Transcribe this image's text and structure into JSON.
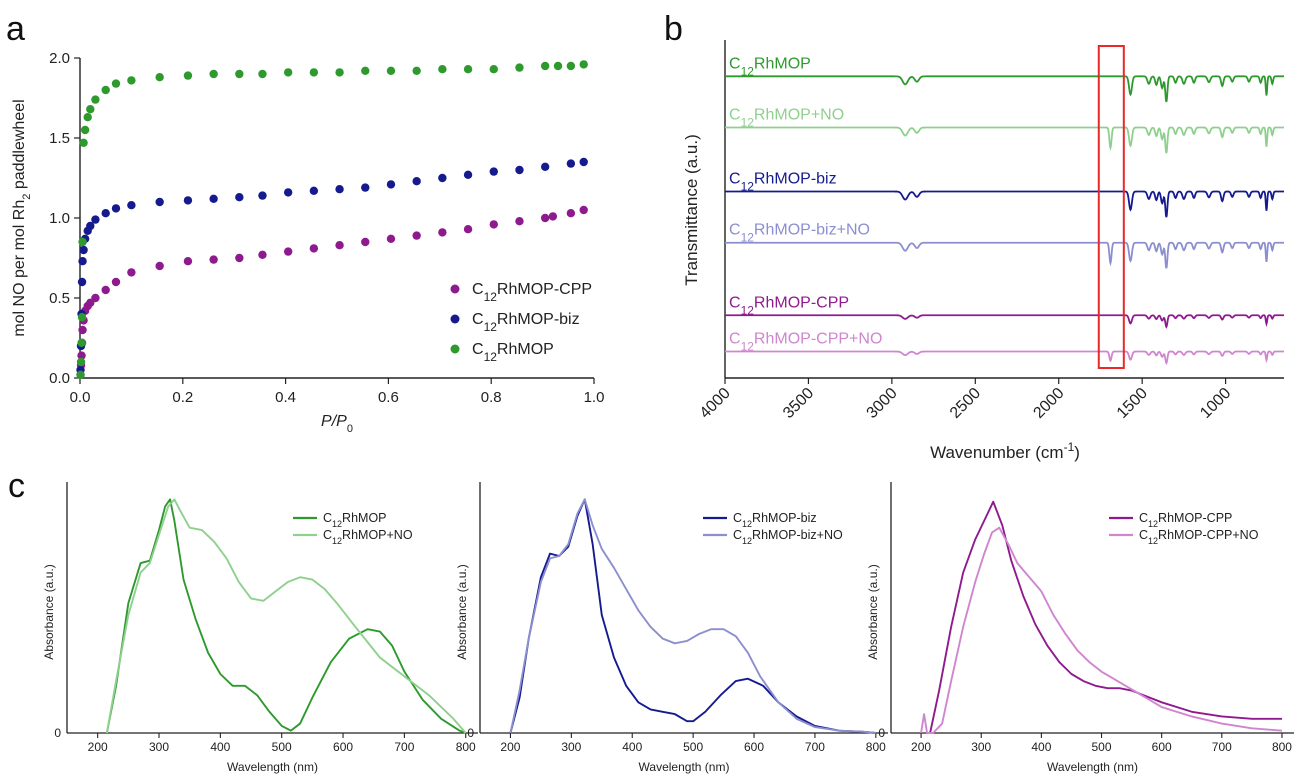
{
  "panel_labels": {
    "a": "a",
    "b": "b",
    "c": "c"
  },
  "colors": {
    "green": "#2e9a2e",
    "light_green": "#8fd08f",
    "navy": "#151b8f",
    "lavender": "#8c8fcf",
    "purple": "#8e1b8e",
    "orchid": "#cf86cf",
    "box": "#e8292a"
  },
  "chart_data": [
    {
      "id": "a",
      "type": "scatter",
      "xlabel": {
        "main": "P/P",
        "sub": "0"
      },
      "ylabel": {
        "pre": "mol NO per mol Rh",
        "sub": "2",
        "post": " paddlewheel"
      },
      "xlim": [
        0,
        1.0
      ],
      "ylim": [
        0,
        2.0
      ],
      "xticks": [
        "0.0",
        "0.2",
        "0.4",
        "0.6",
        "0.8",
        "1.0"
      ],
      "yticks": [
        "0.0",
        "0.5",
        "1.0",
        "1.5",
        "2.0"
      ],
      "legend_position": "bottom-right",
      "series": [
        {
          "pre": "C",
          "sub": "12",
          "post": "RhMOP-CPP",
          "color": "#8e1b8e",
          "x": [
            0.001,
            0.002,
            0.003,
            0.004,
            0.005,
            0.007,
            0.01,
            0.015,
            0.02,
            0.03,
            0.05,
            0.07,
            0.1,
            0.155,
            0.21,
            0.26,
            0.31,
            0.355,
            0.405,
            0.455,
            0.505,
            0.555,
            0.605,
            0.655,
            0.705,
            0.755,
            0.805,
            0.855,
            0.905,
            0.92,
            0.955,
            0.98
          ],
          "y": [
            0.02,
            0.08,
            0.14,
            0.22,
            0.3,
            0.36,
            0.42,
            0.45,
            0.47,
            0.5,
            0.55,
            0.6,
            0.66,
            0.7,
            0.73,
            0.74,
            0.75,
            0.77,
            0.79,
            0.81,
            0.83,
            0.85,
            0.87,
            0.89,
            0.91,
            0.93,
            0.96,
            0.98,
            1.0,
            1.01,
            1.03,
            1.05
          ]
        },
        {
          "pre": "C",
          "sub": "12",
          "post": "RhMOP-biz",
          "color": "#151b8f",
          "x": [
            0.001,
            0.002,
            0.003,
            0.004,
            0.005,
            0.007,
            0.01,
            0.015,
            0.02,
            0.03,
            0.05,
            0.07,
            0.1,
            0.155,
            0.21,
            0.26,
            0.31,
            0.355,
            0.405,
            0.455,
            0.505,
            0.555,
            0.605,
            0.655,
            0.705,
            0.755,
            0.805,
            0.855,
            0.905,
            0.955,
            0.98
          ],
          "y": [
            0.05,
            0.2,
            0.4,
            0.6,
            0.73,
            0.8,
            0.87,
            0.92,
            0.95,
            0.99,
            1.03,
            1.06,
            1.08,
            1.1,
            1.11,
            1.12,
            1.13,
            1.14,
            1.16,
            1.17,
            1.18,
            1.19,
            1.21,
            1.23,
            1.25,
            1.27,
            1.29,
            1.3,
            1.32,
            1.34,
            1.35
          ]
        },
        {
          "pre": "C",
          "sub": "12",
          "post": "RhMOP",
          "color": "#2e9a2e",
          "x": [
            0.001,
            0.002,
            0.003,
            0.004,
            0.005,
            0.007,
            0.01,
            0.015,
            0.02,
            0.03,
            0.05,
            0.07,
            0.1,
            0.155,
            0.21,
            0.26,
            0.31,
            0.355,
            0.405,
            0.455,
            0.505,
            0.555,
            0.605,
            0.655,
            0.705,
            0.755,
            0.805,
            0.855,
            0.905,
            0.93,
            0.955,
            0.98
          ],
          "y": [
            0.02,
            0.1,
            0.22,
            0.38,
            0.85,
            1.47,
            1.55,
            1.63,
            1.68,
            1.74,
            1.8,
            1.84,
            1.86,
            1.88,
            1.89,
            1.9,
            1.9,
            1.9,
            1.91,
            1.91,
            1.91,
            1.92,
            1.92,
            1.92,
            1.93,
            1.93,
            1.93,
            1.94,
            1.95,
            1.95,
            1.95,
            1.96
          ]
        }
      ]
    },
    {
      "id": "b",
      "type": "line",
      "xlabel": {
        "main": "Wavenumber (cm",
        "sup": "-1",
        "post": ")"
      },
      "ylabel": "Transmittance (a.u.)",
      "xlim": [
        4000,
        650
      ],
      "xticks": [
        4000,
        3500,
        3000,
        2500,
        2000,
        1500,
        1000
      ],
      "xtick_labels": [
        "4000",
        "3500",
        "3000",
        "2500",
        "2000",
        "1500",
        "1000"
      ],
      "highlight_box": [
        1760,
        1610
      ],
      "series": [
        {
          "pre": "C",
          "sub": "12",
          "post": "RhMOP",
          "color": "#2e9a2e",
          "offset": 2.58,
          "no_band": false
        },
        {
          "pre": "C",
          "sub": "12",
          "post": "RhMOP+NO",
          "color": "#8fd08f",
          "offset": 2.1,
          "no_band": true
        },
        {
          "pre": "C",
          "sub": "12",
          "post": "RhMOP-biz",
          "color": "#151b8f",
          "offset": 1.5,
          "no_band": false
        },
        {
          "pre": "C",
          "sub": "12",
          "post": "RhMOP-biz+NO",
          "color": "#8c8fcf",
          "offset": 1.02,
          "no_band": true
        },
        {
          "pre": "C",
          "sub": "12",
          "post": "RhMOP-CPP",
          "color": "#8e1b8e",
          "offset": 0.34,
          "no_band": false
        },
        {
          "pre": "C",
          "sub": "12",
          "post": "RhMOP-CPP+NO",
          "color": "#cf86cf",
          "offset": 0.0,
          "no_band": true
        }
      ]
    },
    {
      "id": "c1",
      "type": "line",
      "xlabel": "Wavelength (nm)",
      "ylabel": "Absorbance (a.u.)",
      "xlim": [
        150,
        820
      ],
      "xticks": [
        "200",
        "300",
        "400",
        "500",
        "600",
        "700",
        "800"
      ],
      "ytick": "0",
      "legend_position": "top-right",
      "series": [
        {
          "pre": "C",
          "sub": "12",
          "post": "RhMOP",
          "color": "#2e9a2e",
          "x": [
            215,
            230,
            250,
            270,
            285,
            300,
            310,
            318,
            325,
            340,
            360,
            380,
            400,
            420,
            440,
            460,
            480,
            500,
            515,
            530,
            550,
            580,
            610,
            640,
            660,
            680,
            700,
            730,
            760,
            790,
            800
          ],
          "y": [
            0.0,
            0.2,
            0.55,
            0.72,
            0.73,
            0.86,
            0.96,
            0.99,
            0.9,
            0.65,
            0.48,
            0.34,
            0.25,
            0.2,
            0.2,
            0.16,
            0.09,
            0.03,
            0.01,
            0.04,
            0.15,
            0.3,
            0.4,
            0.44,
            0.43,
            0.37,
            0.26,
            0.14,
            0.06,
            0.01,
            0.0
          ]
        },
        {
          "pre": "C",
          "sub": "12",
          "post": "RhMOP+NO",
          "color": "#8fd08f",
          "x": [
            215,
            230,
            250,
            270,
            285,
            300,
            315,
            325,
            335,
            350,
            370,
            390,
            410,
            430,
            450,
            470,
            490,
            510,
            530,
            550,
            570,
            590,
            620,
            660,
            700,
            740,
            780,
            800
          ],
          "y": [
            0.0,
            0.22,
            0.5,
            0.68,
            0.72,
            0.84,
            0.96,
            0.99,
            0.94,
            0.87,
            0.86,
            0.81,
            0.74,
            0.64,
            0.57,
            0.56,
            0.6,
            0.64,
            0.66,
            0.65,
            0.61,
            0.55,
            0.45,
            0.32,
            0.24,
            0.16,
            0.06,
            0.0
          ]
        }
      ]
    },
    {
      "id": "c2",
      "type": "line",
      "xlabel": "Wavelength (nm)",
      "ylabel": "Absorbance (a.u.)",
      "xlim": [
        150,
        820
      ],
      "xticks": [
        "200",
        "300",
        "400",
        "500",
        "600",
        "700",
        "800"
      ],
      "ytick": "0",
      "legend_position": "top-right",
      "series": [
        {
          "pre": "C",
          "sub": "12",
          "post": "RhMOP-biz",
          "color": "#151b8f",
          "x": [
            200,
            215,
            230,
            250,
            265,
            280,
            295,
            310,
            322,
            335,
            350,
            370,
            390,
            410,
            430,
            450,
            470,
            490,
            500,
            520,
            545,
            570,
            590,
            615,
            640,
            670,
            700,
            740,
            780,
            800
          ],
          "y": [
            0.0,
            0.15,
            0.4,
            0.66,
            0.76,
            0.75,
            0.79,
            0.92,
            0.99,
            0.8,
            0.5,
            0.32,
            0.2,
            0.13,
            0.1,
            0.09,
            0.08,
            0.05,
            0.05,
            0.09,
            0.16,
            0.22,
            0.23,
            0.2,
            0.13,
            0.07,
            0.03,
            0.01,
            0.005,
            0.0
          ]
        },
        {
          "pre": "C",
          "sub": "12",
          "post": "RhMOP-biz+NO",
          "color": "#8c8fcf",
          "x": [
            200,
            215,
            230,
            250,
            265,
            280,
            295,
            310,
            322,
            335,
            350,
            370,
            390,
            410,
            430,
            450,
            470,
            490,
            510,
            530,
            550,
            570,
            590,
            610,
            640,
            670,
            700,
            740,
            780,
            800
          ],
          "y": [
            0.0,
            0.18,
            0.4,
            0.64,
            0.74,
            0.75,
            0.8,
            0.93,
            0.99,
            0.88,
            0.78,
            0.7,
            0.61,
            0.52,
            0.45,
            0.4,
            0.38,
            0.39,
            0.42,
            0.44,
            0.44,
            0.41,
            0.34,
            0.24,
            0.13,
            0.06,
            0.025,
            0.01,
            0.005,
            0.0
          ]
        }
      ]
    },
    {
      "id": "c3",
      "type": "line",
      "xlabel": "Wavelength (nm)",
      "ylabel": "Absorbance (a.u.)",
      "xlim": [
        150,
        820
      ],
      "xticks": [
        "200",
        "300",
        "400",
        "500",
        "600",
        "700",
        "800"
      ],
      "ytick": "0",
      "legend_position": "top-right",
      "series": [
        {
          "pre": "C",
          "sub": "12",
          "post": "RhMOP-CPP",
          "color": "#8e1b8e",
          "x": [
            215,
            230,
            250,
            270,
            290,
            305,
            320,
            335,
            350,
            370,
            390,
            410,
            430,
            450,
            470,
            490,
            510,
            530,
            550,
            570,
            600,
            650,
            700,
            750,
            800
          ],
          "y": [
            0.0,
            0.18,
            0.45,
            0.68,
            0.82,
            0.9,
            0.98,
            0.88,
            0.73,
            0.58,
            0.46,
            0.37,
            0.3,
            0.25,
            0.22,
            0.2,
            0.19,
            0.19,
            0.18,
            0.16,
            0.13,
            0.09,
            0.07,
            0.06,
            0.06
          ]
        },
        {
          "pre": "C",
          "sub": "12",
          "post": "RhMOP-CPP+NO",
          "color": "#cf86cf",
          "x": [
            200,
            205,
            210,
            220,
            235,
            250,
            270,
            290,
            305,
            318,
            330,
            345,
            360,
            380,
            400,
            420,
            440,
            460,
            480,
            500,
            520,
            540,
            560,
            580,
            600,
            650,
            700,
            750,
            800
          ],
          "y": [
            0.0,
            0.08,
            0.0,
            0.0,
            0.04,
            0.22,
            0.45,
            0.64,
            0.76,
            0.85,
            0.87,
            0.8,
            0.72,
            0.66,
            0.6,
            0.5,
            0.42,
            0.35,
            0.3,
            0.26,
            0.23,
            0.2,
            0.17,
            0.14,
            0.11,
            0.07,
            0.04,
            0.02,
            0.01
          ]
        }
      ]
    }
  ]
}
